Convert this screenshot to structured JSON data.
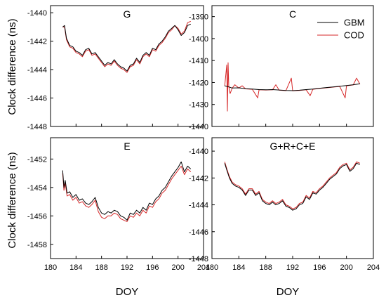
{
  "figure": {
    "ylabel": "Clock difference (ns)",
    "xlabel": "DOY"
  },
  "legend": {
    "items": [
      {
        "name": "GBM",
        "color": "#000000"
      },
      {
        "name": "COD",
        "color": "#d62728"
      }
    ]
  },
  "chart_data": [
    {
      "type": "line",
      "title": "G",
      "xlim": [
        180,
        204
      ],
      "ylim": [
        -1448,
        -1439.5
      ],
      "xticks": [
        180,
        184,
        188,
        192,
        196,
        200,
        204
      ],
      "yticks": [
        -1448,
        -1446,
        -1444,
        -1442,
        -1440
      ],
      "show_x_ticklabels": false,
      "series": [
        {
          "name": "GBM",
          "color": "#000000",
          "x": [
            181.9,
            182.2,
            182.5,
            183.0,
            183.5,
            184.0,
            184.5,
            185.0,
            185.5,
            186.0,
            186.5,
            187.0,
            187.5,
            188.0,
            188.5,
            189.0,
            189.5,
            190.0,
            190.5,
            191.0,
            191.5,
            192.0,
            192.5,
            193.0,
            193.5,
            194.0,
            194.5,
            195.0,
            195.5,
            196.0,
            196.5,
            197.0,
            197.5,
            198.0,
            198.5,
            199.0,
            199.5,
            200.0,
            200.5,
            201.0,
            201.5,
            202.0
          ],
          "y": [
            -1441.0,
            -1440.9,
            -1441.8,
            -1442.3,
            -1442.4,
            -1442.7,
            -1442.8,
            -1443.0,
            -1442.6,
            -1442.5,
            -1442.9,
            -1442.8,
            -1443.1,
            -1443.4,
            -1443.7,
            -1443.5,
            -1443.6,
            -1443.3,
            -1443.6,
            -1443.8,
            -1443.9,
            -1444.1,
            -1443.7,
            -1443.6,
            -1443.2,
            -1443.5,
            -1443.0,
            -1442.8,
            -1443.0,
            -1442.5,
            -1442.6,
            -1442.2,
            -1442.0,
            -1441.7,
            -1441.3,
            -1441.1,
            -1440.9,
            -1441.2,
            -1441.6,
            -1441.4,
            -1440.9,
            -1440.8
          ]
        },
        {
          "name": "COD",
          "color": "#d62728",
          "x": [
            181.9,
            182.2,
            182.5,
            183.0,
            183.5,
            184.0,
            184.5,
            185.0,
            185.5,
            186.0,
            186.5,
            187.0,
            187.5,
            188.0,
            188.5,
            189.0,
            189.5,
            190.0,
            190.5,
            191.0,
            191.5,
            192.0,
            192.5,
            193.0,
            193.5,
            194.0,
            194.5,
            195.0,
            195.5,
            196.0,
            196.5,
            197.0,
            197.5,
            198.0,
            198.5,
            199.0,
            199.5,
            200.0,
            200.5,
            201.0,
            201.5,
            202.0
          ],
          "y": [
            -1441.0,
            -1441.0,
            -1441.9,
            -1442.4,
            -1442.5,
            -1442.8,
            -1442.9,
            -1443.1,
            -1442.7,
            -1442.6,
            -1443.0,
            -1442.9,
            -1443.2,
            -1443.5,
            -1443.8,
            -1443.6,
            -1443.7,
            -1443.4,
            -1443.7,
            -1443.9,
            -1444.0,
            -1444.2,
            -1443.8,
            -1443.7,
            -1443.3,
            -1443.6,
            -1443.1,
            -1442.9,
            -1443.1,
            -1442.6,
            -1442.7,
            -1442.3,
            -1442.1,
            -1441.8,
            -1441.4,
            -1441.2,
            -1440.9,
            -1441.1,
            -1441.5,
            -1441.3,
            -1440.7,
            -1440.6
          ]
        }
      ]
    },
    {
      "type": "line",
      "title": "C",
      "xlim": [
        180,
        204
      ],
      "ylim": [
        -1440,
        -1385
      ],
      "xticks": [
        180,
        184,
        188,
        192,
        196,
        200,
        204
      ],
      "yticks": [
        -1440,
        -1430,
        -1420,
        -1410,
        -1400,
        -1390
      ],
      "show_x_ticklabels": false,
      "series": [
        {
          "name": "GBM",
          "color": "#000000",
          "x": [
            181.9,
            182.5,
            183.0,
            184.0,
            185.0,
            186.0,
            187.0,
            188.0,
            189.0,
            190.0,
            191.0,
            192.0,
            193.0,
            194.0,
            195.0,
            196.0,
            197.0,
            198.0,
            199.0,
            200.0,
            201.0,
            202.0
          ],
          "y": [
            -1421.5,
            -1422.0,
            -1422.5,
            -1422.4,
            -1422.8,
            -1423.0,
            -1423.2,
            -1423.3,
            -1423.2,
            -1423.4,
            -1423.6,
            -1423.7,
            -1423.5,
            -1423.2,
            -1423.0,
            -1422.6,
            -1422.3,
            -1422.0,
            -1421.7,
            -1421.4,
            -1421.0,
            -1420.6
          ]
        },
        {
          "name": "COD",
          "color": "#d62728",
          "x": [
            181.9,
            182.2,
            182.3,
            182.4,
            182.5,
            182.7,
            183.0,
            183.4,
            184.0,
            184.5,
            185.0,
            186.0,
            186.8,
            187.0,
            188.0,
            189.0,
            189.5,
            190.0,
            191.0,
            191.8,
            192.0,
            193.0,
            194.0,
            194.6,
            195.0,
            196.0,
            197.0,
            198.0,
            199.0,
            199.8,
            200.0,
            201.0,
            201.5,
            202.0
          ],
          "y": [
            -1421.6,
            -1412.0,
            -1433.0,
            -1411.0,
            -1422.0,
            -1425.0,
            -1422.6,
            -1421.0,
            -1422.5,
            -1421.5,
            -1422.9,
            -1423.1,
            -1427.0,
            -1423.3,
            -1423.4,
            -1423.3,
            -1421.0,
            -1423.5,
            -1423.7,
            -1418.0,
            -1423.8,
            -1423.6,
            -1423.3,
            -1426.0,
            -1423.1,
            -1422.7,
            -1422.4,
            -1422.1,
            -1421.8,
            -1427.0,
            -1421.5,
            -1421.1,
            -1418.0,
            -1420.7
          ]
        }
      ]
    },
    {
      "type": "line",
      "title": "E",
      "xlim": [
        180,
        204
      ],
      "ylim": [
        -1459,
        -1450.5
      ],
      "xticks": [
        180,
        184,
        188,
        192,
        196,
        200,
        204
      ],
      "yticks": [
        -1458,
        -1456,
        -1454,
        -1452
      ],
      "show_x_ticklabels": true,
      "series": [
        {
          "name": "GBM",
          "color": "#000000",
          "x": [
            181.9,
            182.1,
            182.3,
            182.6,
            183.0,
            183.5,
            184.0,
            184.5,
            185.0,
            185.5,
            186.0,
            186.5,
            187.0,
            187.5,
            188.0,
            188.5,
            189.0,
            189.5,
            190.0,
            190.5,
            191.0,
            191.5,
            192.0,
            192.5,
            193.0,
            193.5,
            194.0,
            194.5,
            195.0,
            195.5,
            196.0,
            196.5,
            197.0,
            197.5,
            198.0,
            198.5,
            199.0,
            199.5,
            200.0,
            200.5,
            201.0,
            201.5,
            202.0
          ],
          "y": [
            -1452.8,
            -1454.0,
            -1453.5,
            -1454.4,
            -1454.3,
            -1454.7,
            -1454.5,
            -1454.9,
            -1454.8,
            -1455.1,
            -1455.2,
            -1455.0,
            -1454.7,
            -1455.4,
            -1455.8,
            -1455.9,
            -1455.7,
            -1455.8,
            -1455.6,
            -1455.7,
            -1456.0,
            -1456.1,
            -1456.3,
            -1455.8,
            -1455.9,
            -1455.6,
            -1455.8,
            -1455.4,
            -1455.6,
            -1455.1,
            -1455.2,
            -1454.8,
            -1454.6,
            -1454.2,
            -1454.0,
            -1453.6,
            -1453.2,
            -1452.9,
            -1452.6,
            -1452.2,
            -1452.9,
            -1452.5,
            -1452.7
          ]
        },
        {
          "name": "COD",
          "color": "#d62728",
          "x": [
            181.9,
            182.1,
            182.3,
            182.6,
            183.0,
            183.5,
            184.0,
            184.5,
            185.0,
            185.5,
            186.0,
            186.5,
            187.0,
            187.5,
            188.0,
            188.5,
            189.0,
            189.5,
            190.0,
            190.5,
            191.0,
            191.5,
            192.0,
            192.5,
            193.0,
            193.5,
            194.0,
            194.5,
            195.0,
            195.5,
            196.0,
            196.5,
            197.0,
            197.5,
            198.0,
            198.5,
            199.0,
            199.5,
            200.0,
            200.5,
            201.0,
            201.5,
            202.0
          ],
          "y": [
            -1453.0,
            -1454.2,
            -1453.7,
            -1454.6,
            -1454.5,
            -1454.9,
            -1454.7,
            -1455.1,
            -1455.0,
            -1455.3,
            -1455.4,
            -1455.2,
            -1454.9,
            -1455.7,
            -1456.1,
            -1456.2,
            -1456.0,
            -1456.0,
            -1455.8,
            -1455.9,
            -1456.2,
            -1456.3,
            -1456.4,
            -1456.0,
            -1456.1,
            -1455.8,
            -1456.0,
            -1455.6,
            -1455.8,
            -1455.3,
            -1455.4,
            -1455.0,
            -1454.8,
            -1454.4,
            -1454.2,
            -1453.8,
            -1453.4,
            -1453.1,
            -1452.8,
            -1452.5,
            -1453.1,
            -1452.7,
            -1452.9
          ]
        }
      ]
    },
    {
      "type": "line",
      "title": "G+R+C+E",
      "xlim": [
        180,
        204
      ],
      "ylim": [
        -1448,
        -1439
      ],
      "xticks": [
        180,
        184,
        188,
        192,
        196,
        200,
        204
      ],
      "yticks": [
        -1448,
        -1446,
        -1444,
        -1442,
        -1440
      ],
      "show_x_ticklabels": true,
      "series": [
        {
          "name": "GBM",
          "color": "#000000",
          "x": [
            181.9,
            182.2,
            182.6,
            183.0,
            183.5,
            184.0,
            184.5,
            185.0,
            185.5,
            186.0,
            186.5,
            187.0,
            187.5,
            188.0,
            188.5,
            189.0,
            189.5,
            190.0,
            190.5,
            191.0,
            191.5,
            192.0,
            192.5,
            193.0,
            193.5,
            194.0,
            194.5,
            195.0,
            195.5,
            196.0,
            196.5,
            197.0,
            197.5,
            198.0,
            198.5,
            199.0,
            199.5,
            200.0,
            200.5,
            201.0,
            201.5,
            202.0
          ],
          "y": [
            -1440.9,
            -1441.4,
            -1442.0,
            -1442.4,
            -1442.6,
            -1442.7,
            -1442.9,
            -1443.3,
            -1442.9,
            -1442.9,
            -1443.3,
            -1443.1,
            -1443.7,
            -1443.9,
            -1444.0,
            -1443.8,
            -1444.0,
            -1443.9,
            -1443.7,
            -1444.1,
            -1444.2,
            -1444.4,
            -1444.3,
            -1444.0,
            -1443.9,
            -1443.4,
            -1443.6,
            -1443.1,
            -1443.2,
            -1442.9,
            -1442.7,
            -1442.4,
            -1442.1,
            -1441.9,
            -1441.7,
            -1441.3,
            -1441.1,
            -1441.0,
            -1441.5,
            -1441.3,
            -1440.9,
            -1441.0
          ]
        },
        {
          "name": "COD",
          "color": "#d62728",
          "x": [
            181.9,
            182.2,
            182.6,
            183.0,
            183.5,
            184.0,
            184.5,
            185.0,
            185.5,
            186.0,
            186.5,
            187.0,
            187.5,
            188.0,
            188.5,
            189.0,
            189.5,
            190.0,
            190.5,
            191.0,
            191.5,
            192.0,
            192.5,
            193.0,
            193.5,
            194.0,
            194.5,
            195.0,
            195.5,
            196.0,
            196.5,
            197.0,
            197.5,
            198.0,
            198.5,
            199.0,
            199.5,
            200.0,
            200.5,
            201.0,
            201.5,
            202.0
          ],
          "y": [
            -1440.8,
            -1441.3,
            -1441.9,
            -1442.3,
            -1442.5,
            -1442.6,
            -1442.8,
            -1443.2,
            -1442.8,
            -1442.8,
            -1443.2,
            -1443.0,
            -1443.6,
            -1443.8,
            -1443.9,
            -1443.7,
            -1443.9,
            -1443.8,
            -1443.6,
            -1444.0,
            -1444.1,
            -1444.3,
            -1444.2,
            -1443.9,
            -1443.8,
            -1443.3,
            -1443.5,
            -1443.0,
            -1443.1,
            -1442.8,
            -1442.6,
            -1442.3,
            -1442.0,
            -1441.8,
            -1441.6,
            -1441.2,
            -1441.0,
            -1440.9,
            -1441.4,
            -1441.2,
            -1440.8,
            -1440.9
          ]
        }
      ]
    }
  ]
}
